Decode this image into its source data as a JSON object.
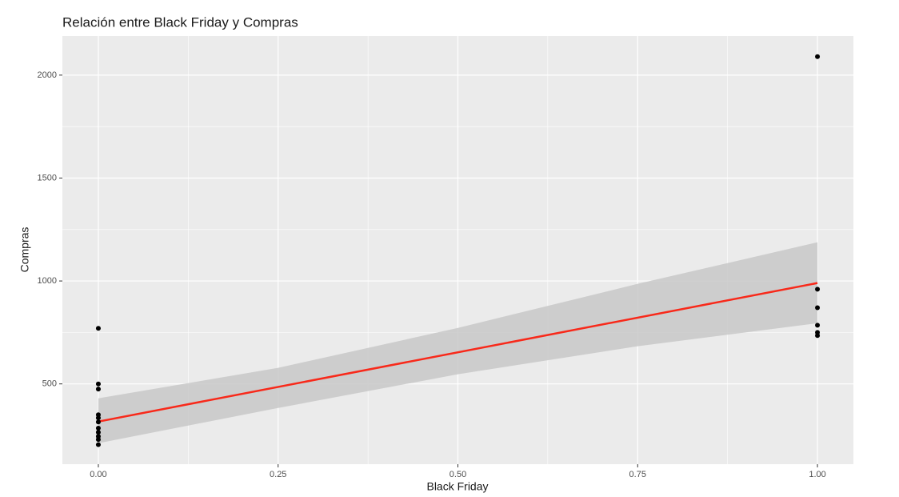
{
  "chart_data": {
    "type": "scatter",
    "title": "Relación entre Black Friday y Compras",
    "x_label": "Black Friday",
    "y_label": "Compras",
    "series": [
      {
        "color": "#000000",
        "x": [
          0,
          0,
          0,
          0,
          0,
          0,
          0,
          0,
          0,
          0,
          0,
          1,
          1,
          1,
          1,
          1,
          1
        ],
        "values": [
          770,
          500,
          475,
          350,
          335,
          315,
          285,
          265,
          245,
          230,
          205,
          2090,
          960,
          870,
          785,
          750,
          735
        ]
      }
    ],
    "fit": {
      "color": "#f8291a",
      "x": [
        0,
        1
      ],
      "values": [
        317,
        990
      ]
    },
    "band": {
      "color": "#c8c8c8",
      "x": [
        0,
        0.25,
        0.5,
        0.75,
        1
      ],
      "upper": [
        430,
        578,
        772,
        986,
        1188
      ],
      "lower": [
        212,
        383,
        547,
        683,
        795
      ]
    },
    "xlim": [
      -0.05,
      1.05
    ],
    "ylim": [
      110,
      2190
    ],
    "xticks": [
      {
        "value": 0,
        "label": "0.00"
      },
      {
        "value": 0.25,
        "label": "0.25"
      },
      {
        "value": 0.5,
        "label": "0.50"
      },
      {
        "value": 0.75,
        "label": "0.75"
      },
      {
        "value": 1,
        "label": "1.00"
      }
    ],
    "yticks": [
      500,
      1000,
      1500,
      2000
    ],
    "grid": true
  }
}
